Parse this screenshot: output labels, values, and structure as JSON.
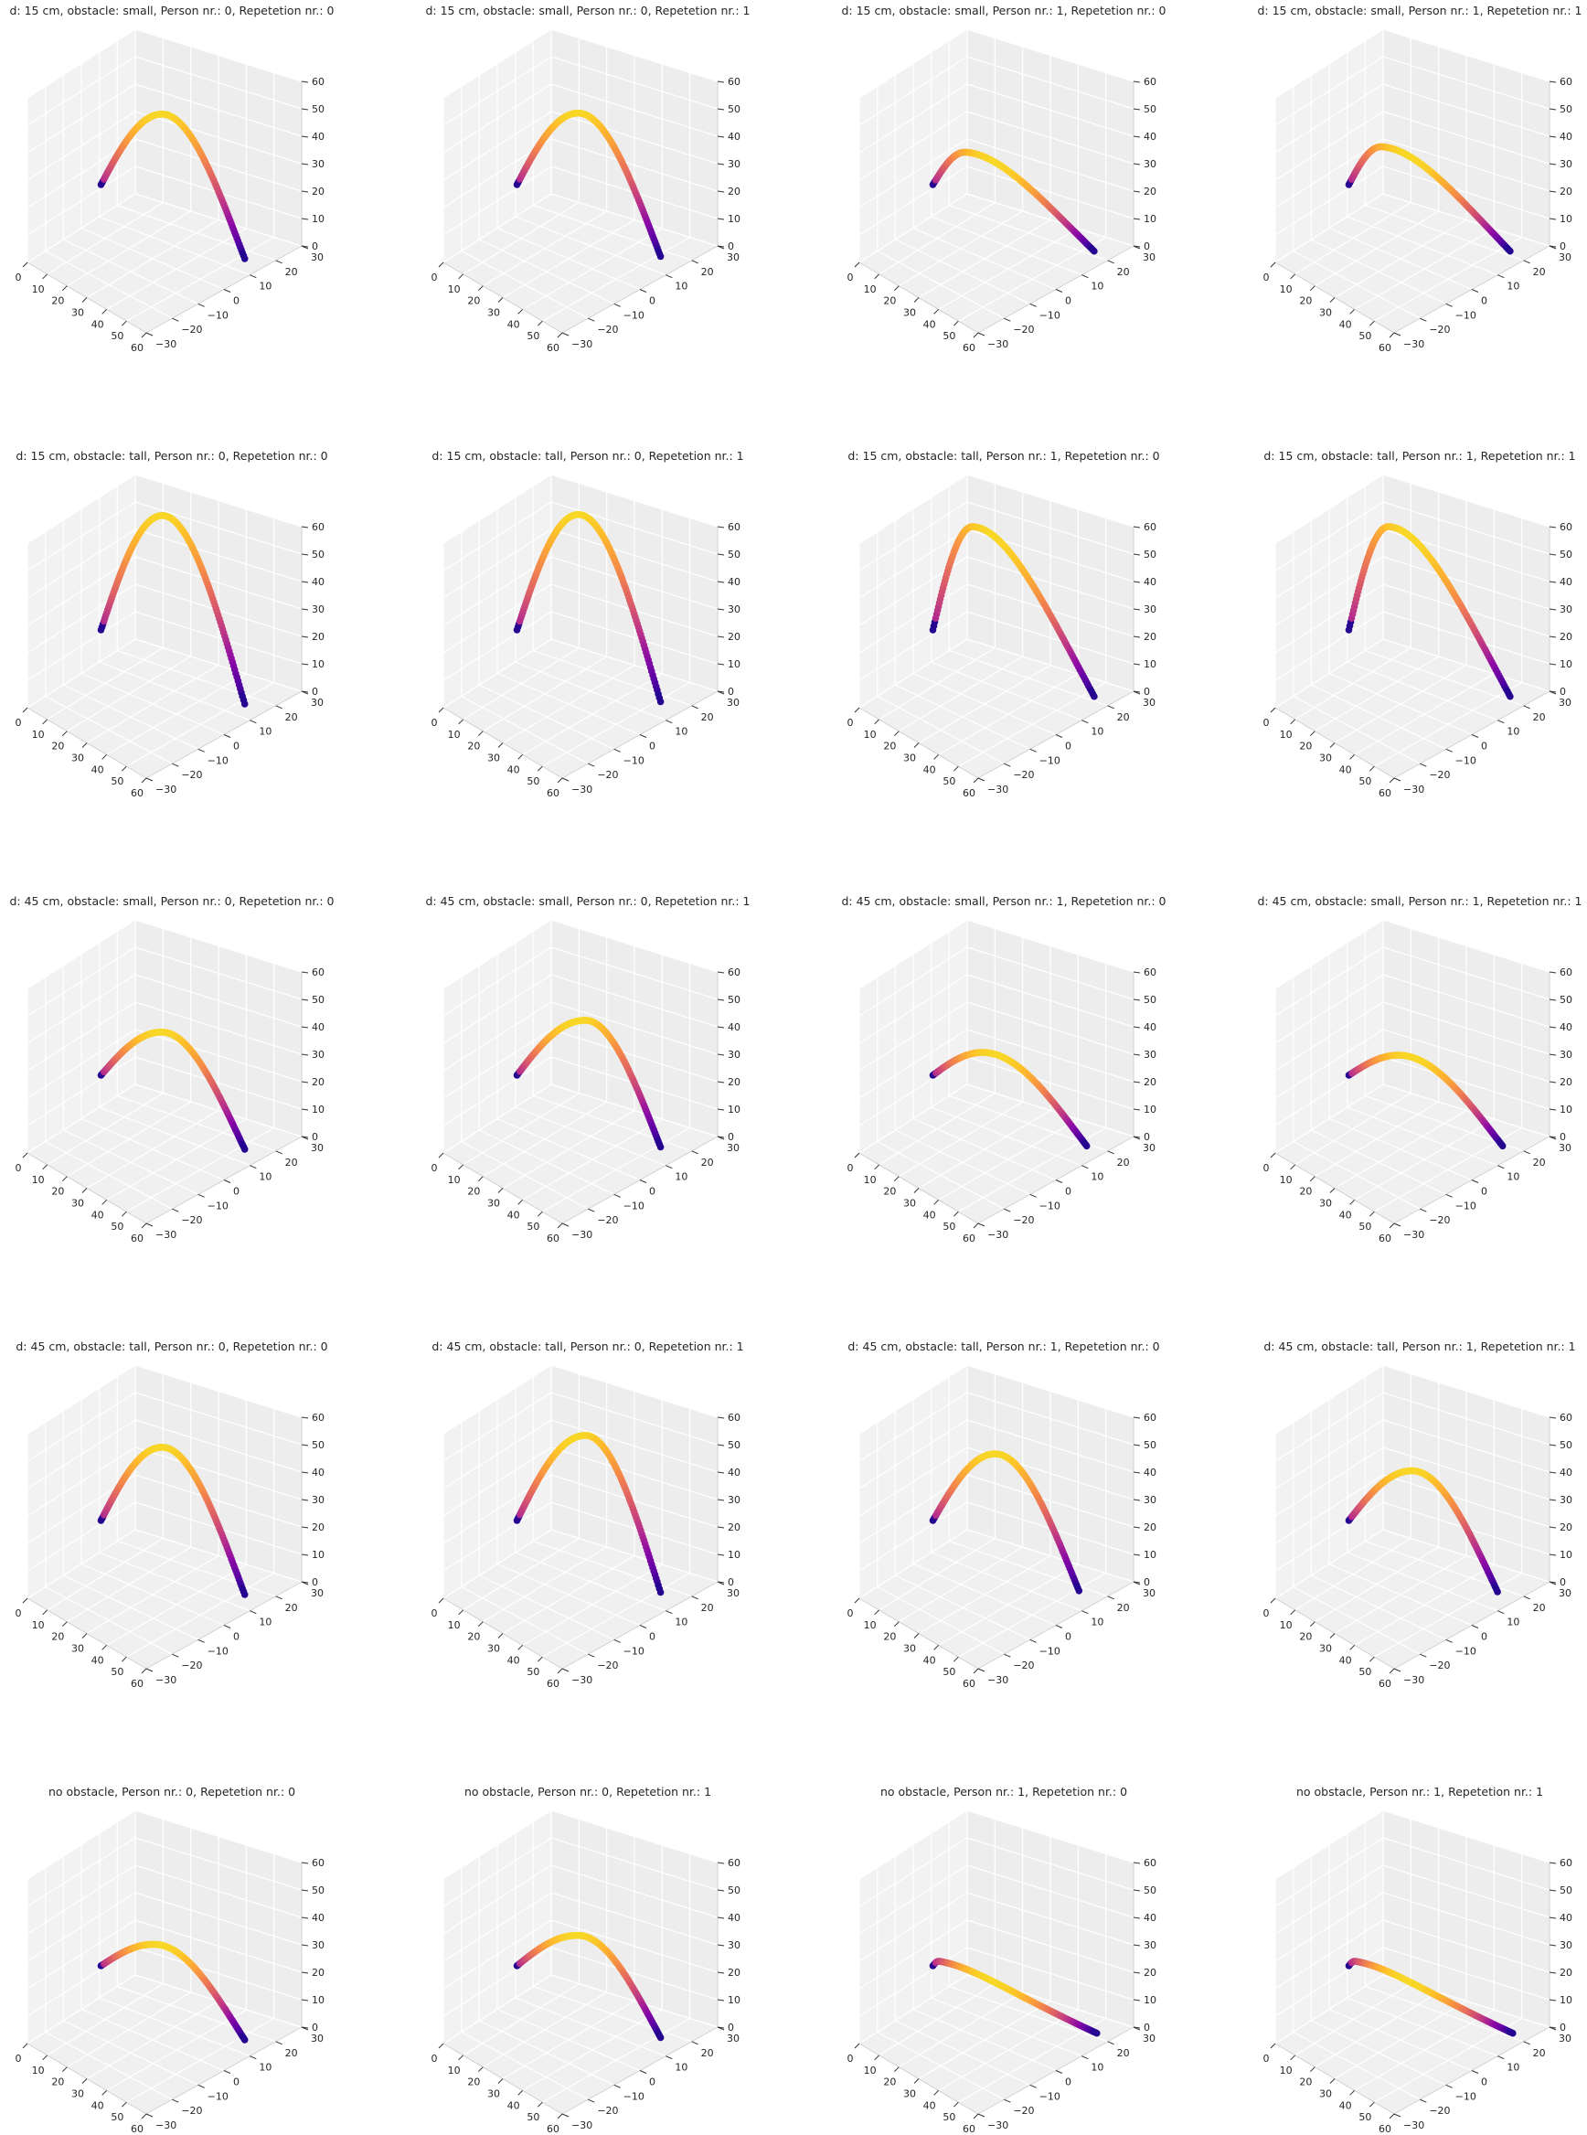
{
  "figure": {
    "grid": true,
    "rows": 5,
    "cols": 4,
    "colormap": "plasma",
    "pane_color": "#f0f0f0",
    "grid_color": "#ffffff",
    "tick_labels": {
      "x": [
        "0",
        "10",
        "20",
        "30",
        "40",
        "50",
        "60"
      ],
      "y": [
        "−30",
        "−20",
        "−10",
        "0",
        "10",
        "20",
        "30"
      ],
      "z": [
        "0",
        "10",
        "20",
        "30",
        "40",
        "50",
        "60"
      ]
    }
  },
  "chart_data": [
    {
      "type": "scatter",
      "title": "d: 15 cm, obstacle: small, Person nr.: 0, Repetetion nr.: 0",
      "xlim": [
        0,
        60
      ],
      "ylim": [
        -30,
        30
      ],
      "zlim": [
        0,
        60
      ],
      "trajectory": {
        "start": [
          15,
          -8,
          25
        ],
        "end": [
          52,
          16,
          0
        ],
        "apex": 52,
        "peak_at": 0.45,
        "bend": 0
      }
    },
    {
      "type": "scatter",
      "title": "d: 15 cm, obstacle: small, Person nr.: 0, Repetetion nr.: 1",
      "xlim": [
        0,
        60
      ],
      "ylim": [
        -30,
        30
      ],
      "zlim": [
        0,
        60
      ],
      "trajectory": {
        "start": [
          15,
          -8,
          25
        ],
        "end": [
          51,
          17,
          0
        ],
        "apex": 52,
        "peak_at": 0.45,
        "bend": 0
      }
    },
    {
      "type": "scatter",
      "title": "d: 15 cm, obstacle: small, Person nr.: 1, Repetetion nr.: 0",
      "xlim": [
        0,
        60
      ],
      "ylim": [
        -30,
        30
      ],
      "zlim": [
        0,
        60
      ],
      "trajectory": {
        "start": [
          15,
          -8,
          25
        ],
        "end": [
          53,
          22,
          0
        ],
        "apex": 38,
        "peak_at": 0.25,
        "bend": -3
      }
    },
    {
      "type": "scatter",
      "title": "d: 15 cm, obstacle: small, Person nr.: 1, Repetetion nr.: 1",
      "xlim": [
        0,
        60
      ],
      "ylim": [
        -30,
        30
      ],
      "zlim": [
        0,
        60
      ],
      "trajectory": {
        "start": [
          15,
          -8,
          25
        ],
        "end": [
          53,
          22,
          0
        ],
        "apex": 40,
        "peak_at": 0.25,
        "bend": -3
      }
    },
    {
      "type": "scatter",
      "title": "d: 15 cm, obstacle: tall, Person nr.: 0, Repetetion nr.: 0",
      "xlim": [
        0,
        60
      ],
      "ylim": [
        -30,
        30
      ],
      "zlim": [
        0,
        60
      ],
      "trajectory": {
        "start": [
          15,
          -8,
          25
        ],
        "end": [
          52,
          16,
          0
        ],
        "apex": 68,
        "peak_at": 0.45,
        "bend": 0
      }
    },
    {
      "type": "scatter",
      "title": "d: 15 cm, obstacle: tall, Person nr.: 0, Repetetion nr.: 1",
      "xlim": [
        0,
        60
      ],
      "ylim": [
        -30,
        30
      ],
      "zlim": [
        0,
        60
      ],
      "trajectory": {
        "start": [
          15,
          -8,
          25
        ],
        "end": [
          51,
          17,
          0
        ],
        "apex": 68,
        "peak_at": 0.45,
        "bend": 0
      }
    },
    {
      "type": "scatter",
      "title": "d: 15 cm, obstacle: tall, Person nr.: 1, Repetetion nr.: 0",
      "xlim": [
        0,
        60
      ],
      "ylim": [
        -30,
        30
      ],
      "zlim": [
        0,
        60
      ],
      "trajectory": {
        "start": [
          15,
          -8,
          25
        ],
        "end": [
          53,
          22,
          0
        ],
        "apex": 64,
        "peak_at": 0.3,
        "bend": -3
      }
    },
    {
      "type": "scatter",
      "title": "d: 15 cm, obstacle: tall, Person nr.: 1, Repetetion nr.: 1",
      "xlim": [
        0,
        60
      ],
      "ylim": [
        -30,
        30
      ],
      "zlim": [
        0,
        60
      ],
      "trajectory": {
        "start": [
          15,
          -8,
          25
        ],
        "end": [
          53,
          22,
          0
        ],
        "apex": 64,
        "peak_at": 0.3,
        "bend": -3
      }
    },
    {
      "type": "scatter",
      "title": "d: 45 cm, obstacle: small, Person nr.: 0, Repetetion nr.: 0",
      "xlim": [
        0,
        60
      ],
      "ylim": [
        -30,
        30
      ],
      "zlim": [
        0,
        60
      ],
      "trajectory": {
        "start": [
          15,
          -8,
          25
        ],
        "end": [
          52,
          16,
          0
        ],
        "apex": 42,
        "peak_at": 0.45,
        "bend": 0
      }
    },
    {
      "type": "scatter",
      "title": "d: 45 cm, obstacle: small, Person nr.: 0, Repetetion nr.: 1",
      "xlim": [
        0,
        60
      ],
      "ylim": [
        -30,
        30
      ],
      "zlim": [
        0,
        60
      ],
      "trajectory": {
        "start": [
          15,
          -8,
          25
        ],
        "end": [
          51,
          17,
          0
        ],
        "apex": 46,
        "peak_at": 0.5,
        "bend": 0
      }
    },
    {
      "type": "scatter",
      "title": "d: 45 cm, obstacle: small, Person nr.: 1, Repetetion nr.: 0",
      "xlim": [
        0,
        60
      ],
      "ylim": [
        -30,
        30
      ],
      "zlim": [
        0,
        60
      ],
      "trajectory": {
        "start": [
          15,
          -8,
          25
        ],
        "end": [
          53,
          19,
          0
        ],
        "apex": 34,
        "peak_at": 0.35,
        "bend": 0
      }
    },
    {
      "type": "scatter",
      "title": "d: 45 cm, obstacle: small, Person nr.: 1, Repetetion nr.: 1",
      "xlim": [
        0,
        60
      ],
      "ylim": [
        -30,
        30
      ],
      "zlim": [
        0,
        60
      ],
      "trajectory": {
        "start": [
          15,
          -8,
          25
        ],
        "end": [
          53,
          19,
          0
        ],
        "apex": 33,
        "peak_at": 0.35,
        "bend": 0
      }
    },
    {
      "type": "scatter",
      "title": "d: 45 cm, obstacle: tall, Person nr.: 0, Repetetion nr.: 0",
      "xlim": [
        0,
        60
      ],
      "ylim": [
        -30,
        30
      ],
      "zlim": [
        0,
        60
      ],
      "trajectory": {
        "start": [
          15,
          -8,
          25
        ],
        "end": [
          52,
          16,
          0
        ],
        "apex": 53,
        "peak_at": 0.45,
        "bend": 0
      }
    },
    {
      "type": "scatter",
      "title": "d: 45 cm, obstacle: tall, Person nr.: 0, Repetetion nr.: 1",
      "xlim": [
        0,
        60
      ],
      "ylim": [
        -30,
        30
      ],
      "zlim": [
        0,
        60
      ],
      "trajectory": {
        "start": [
          15,
          -8,
          25
        ],
        "end": [
          51,
          17,
          0
        ],
        "apex": 57,
        "peak_at": 0.5,
        "bend": 0
      }
    },
    {
      "type": "scatter",
      "title": "d: 45 cm, obstacle: tall, Person nr.: 1, Repetetion nr.: 0",
      "xlim": [
        0,
        60
      ],
      "ylim": [
        -30,
        30
      ],
      "zlim": [
        0,
        60
      ],
      "trajectory": {
        "start": [
          15,
          -8,
          25
        ],
        "end": [
          51,
          18,
          0
        ],
        "apex": 50,
        "peak_at": 0.45,
        "bend": 0
      }
    },
    {
      "type": "scatter",
      "title": "d: 45 cm, obstacle: tall, Person nr.: 1, Repetetion nr.: 1",
      "xlim": [
        0,
        60
      ],
      "ylim": [
        -30,
        30
      ],
      "zlim": [
        0,
        60
      ],
      "trajectory": {
        "start": [
          15,
          -8,
          25
        ],
        "end": [
          52,
          18,
          0
        ],
        "apex": 44,
        "peak_at": 0.45,
        "bend": 0
      }
    },
    {
      "type": "scatter",
      "title": "no obstacle, Person nr.: 0, Repetetion nr.: 0",
      "xlim": [
        0,
        60
      ],
      "ylim": [
        -30,
        30
      ],
      "zlim": [
        0,
        60
      ],
      "trajectory": {
        "start": [
          15,
          -8,
          25
        ],
        "end": [
          52,
          16,
          0
        ],
        "apex": 34,
        "peak_at": 0.4,
        "bend": 0
      }
    },
    {
      "type": "scatter",
      "title": "no obstacle, Person nr.: 0, Repetetion nr.: 1",
      "xlim": [
        0,
        60
      ],
      "ylim": [
        -30,
        30
      ],
      "zlim": [
        0,
        60
      ],
      "trajectory": {
        "start": [
          15,
          -8,
          25
        ],
        "end": [
          51,
          17,
          0
        ],
        "apex": 37,
        "peak_at": 0.45,
        "bend": 0
      }
    },
    {
      "type": "scatter",
      "title": "no obstacle, Person nr.: 1, Repetetion nr.: 0",
      "xlim": [
        0,
        60
      ],
      "ylim": [
        -30,
        30
      ],
      "zlim": [
        0,
        60
      ],
      "trajectory": {
        "start": [
          15,
          -8,
          25
        ],
        "end": [
          54,
          22,
          0
        ],
        "apex": 27,
        "peak_at": 0.05,
        "bend": -4
      }
    },
    {
      "type": "scatter",
      "title": "no obstacle, Person nr.: 1, Repetetion nr.: 1",
      "xlim": [
        0,
        60
      ],
      "ylim": [
        -30,
        30
      ],
      "zlim": [
        0,
        60
      ],
      "trajectory": {
        "start": [
          15,
          -8,
          25
        ],
        "end": [
          54,
          22,
          0
        ],
        "apex": 27,
        "peak_at": 0.05,
        "bend": -4
      }
    }
  ]
}
